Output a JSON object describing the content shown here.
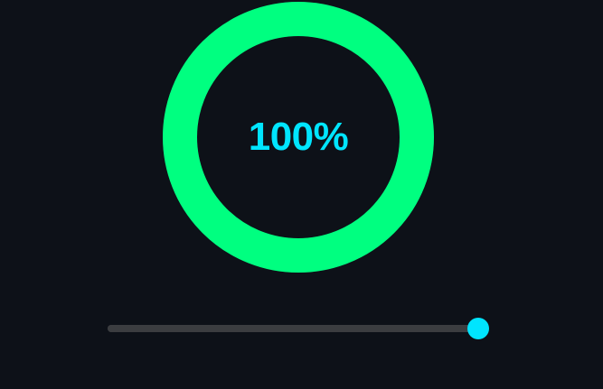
{
  "progress": {
    "value": 1.0,
    "label": "100%"
  },
  "slider": {
    "value": 1.0
  },
  "colors": {
    "background": "#0d1118",
    "ring": "#00ff80",
    "ring_track": "#1e2a2a",
    "text": "#00e5ff",
    "slider_track": "#3b3d40",
    "slider_thumb": "#00e5ff"
  }
}
